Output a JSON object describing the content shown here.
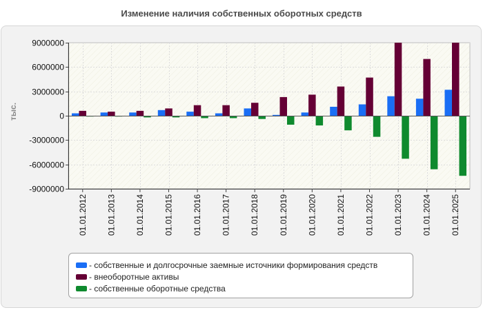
{
  "chart_data": {
    "type": "bar",
    "title": "Изменение наличия собственных оборотных средств",
    "ylabel": "тыс.",
    "xlabel": "",
    "ylim": [
      -9000000,
      9000000
    ],
    "yticks": [
      9000000,
      6000000,
      3000000,
      0,
      -3000000,
      -6000000,
      -9000000
    ],
    "ytick_labels": [
      "9000000",
      "6000000",
      "3000000",
      "0",
      "-3000000",
      "-6000000",
      "-9000000"
    ],
    "categories": [
      "01.01.2012",
      "01.01.2013",
      "01.01.2014",
      "01.01.2015",
      "01.01.2016",
      "01.01.2017",
      "01.01.2018",
      "01.01.2019",
      "01.01.2020",
      "01.01.2021",
      "01.01.2022",
      "01.01.2023",
      "01.01.2024",
      "01.01.2025"
    ],
    "series": [
      {
        "name": "собственные и долгосрочные заемные источники формирования средств",
        "color": "#1a6ef5",
        "values": [
          300000,
          400000,
          400000,
          700000,
          500000,
          300000,
          900000,
          100000,
          400000,
          1100000,
          1400000,
          2400000,
          2100000,
          3200000
        ]
      },
      {
        "name": "внеоборотные активы",
        "color": "#650035",
        "values": [
          600000,
          500000,
          600000,
          900000,
          1300000,
          1300000,
          1600000,
          2300000,
          2600000,
          3600000,
          4700000,
          9000000,
          7000000,
          9000000
        ]
      },
      {
        "name": "собственные оборотные средства",
        "color": "#0f8a2e",
        "values": [
          -100000,
          -100000,
          -200000,
          -200000,
          -300000,
          -300000,
          -400000,
          -1100000,
          -1200000,
          -1800000,
          -2600000,
          -5300000,
          -6600000,
          -7400000
        ]
      }
    ],
    "grid": true,
    "legend_position": "bottom"
  }
}
